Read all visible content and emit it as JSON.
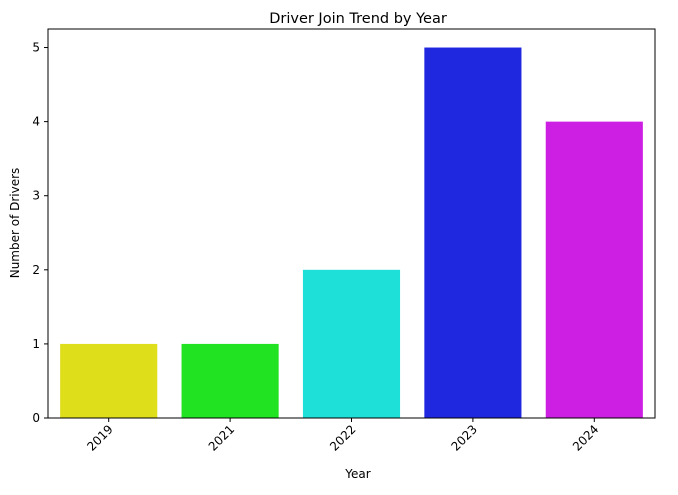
{
  "chart_data": {
    "type": "bar",
    "title": "Driver Join Trend by Year",
    "xlabel": "Year",
    "ylabel": "Number of Drivers",
    "categories": [
      "2019",
      "2021",
      "2022",
      "2023",
      "2024"
    ],
    "values": [
      1,
      1,
      2,
      5,
      4
    ],
    "colors": [
      "#dede1a",
      "#22e322",
      "#1fdfd9",
      "#2028df",
      "#cc1fe3"
    ],
    "ylim": [
      0,
      5.25
    ],
    "yticks": [
      0,
      1,
      2,
      3,
      4,
      5
    ],
    "grid": false,
    "legend": "none",
    "xtick_rotation": 45
  }
}
